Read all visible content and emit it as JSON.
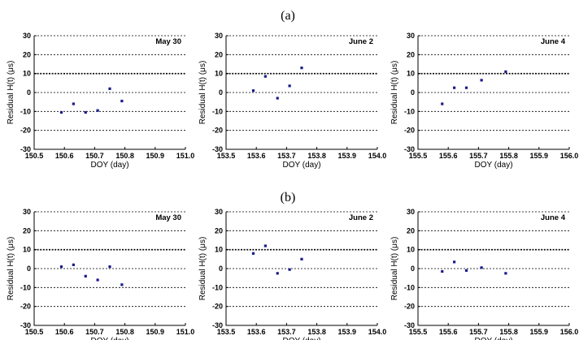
{
  "panel_labels": [
    "(a)",
    "(b)"
  ],
  "chart_data": [
    {
      "type": "scatter",
      "group": "(a)",
      "title": "May 30",
      "xlabel": "DOY (day)",
      "ylabel": "Residual H(t) (μs)",
      "xlim": [
        150.5,
        151.0
      ],
      "ylim": [
        -30,
        30
      ],
      "xticks": [
        "150.5",
        "150.6",
        "150.7",
        "150.8",
        "150.9",
        "151.0"
      ],
      "yticks": [
        "30",
        "20",
        "10",
        "0",
        "-10",
        "-20",
        "-30"
      ],
      "grid": true,
      "ref_line": 10,
      "x": [
        150.59,
        150.63,
        150.67,
        150.71,
        150.75,
        150.79
      ],
      "y": [
        -10.5,
        -6,
        -10.5,
        -9.5,
        2,
        -4.5
      ]
    },
    {
      "type": "scatter",
      "group": "(a)",
      "title": "June 2",
      "xlabel": "DOY (day)",
      "ylabel": "Residual H(t) (μs)",
      "xlim": [
        153.5,
        154.0
      ],
      "ylim": [
        -30,
        30
      ],
      "xticks": [
        "153.5",
        "153.6",
        "153.7",
        "153.8",
        "153.9",
        "154.0"
      ],
      "yticks": [
        "30",
        "20",
        "10",
        "0",
        "-10",
        "-20",
        "-30"
      ],
      "grid": true,
      "ref_line": 10,
      "x": [
        153.59,
        153.63,
        153.67,
        153.71,
        153.75
      ],
      "y": [
        1,
        8.5,
        -3,
        3.5,
        13
      ]
    },
    {
      "type": "scatter",
      "group": "(a)",
      "title": "June 4",
      "xlabel": "DOY (day)",
      "ylabel": "Residual H(t) (μs)",
      "xlim": [
        155.5,
        156.0
      ],
      "ylim": [
        -30,
        30
      ],
      "xticks": [
        "155.5",
        "155.6",
        "155.7",
        "155.8",
        "155.9",
        "156.0"
      ],
      "yticks": [
        "30",
        "20",
        "10",
        "0",
        "-10",
        "-20",
        "-30"
      ],
      "grid": true,
      "ref_line": 10,
      "x": [
        155.58,
        155.62,
        155.66,
        155.71,
        155.79
      ],
      "y": [
        -6,
        2.5,
        2.5,
        6.5,
        11
      ]
    },
    {
      "type": "scatter",
      "group": "(b)",
      "title": "May 30",
      "xlabel": "DOY (day)",
      "ylabel": "Residual H(t) (μs)",
      "xlim": [
        150.5,
        151.0
      ],
      "ylim": [
        -30,
        30
      ],
      "xticks": [
        "150.5",
        "150.6",
        "150.7",
        "150.8",
        "150.9",
        "151.0"
      ],
      "yticks": [
        "30",
        "20",
        "10",
        "0",
        "-10",
        "-20",
        "-30"
      ],
      "grid": true,
      "ref_line": 10,
      "x": [
        150.59,
        150.63,
        150.67,
        150.71,
        150.75,
        150.79
      ],
      "y": [
        1,
        2,
        -4,
        -6,
        1,
        -8.5
      ]
    },
    {
      "type": "scatter",
      "group": "(b)",
      "title": "June 2",
      "xlabel": "DOY (day)",
      "ylabel": "Residual H(t) (μs)",
      "xlim": [
        153.5,
        154.0
      ],
      "ylim": [
        -30,
        30
      ],
      "xticks": [
        "153.5",
        "153.6",
        "153.7",
        "153.8",
        "153.9",
        "154.0"
      ],
      "yticks": [
        "30",
        "20",
        "10",
        "0",
        "-10",
        "-20",
        "-30"
      ],
      "grid": true,
      "ref_line": 10,
      "x": [
        153.59,
        153.63,
        153.67,
        153.71,
        153.75
      ],
      "y": [
        8,
        12,
        -2.5,
        -0.5,
        5
      ]
    },
    {
      "type": "scatter",
      "group": "(b)",
      "title": "June 4",
      "xlabel": "DOY (day)",
      "ylabel": "Residual H(t) (μs)",
      "xlim": [
        155.5,
        156.0
      ],
      "ylim": [
        -30,
        30
      ],
      "xticks": [
        "155.5",
        "155.6",
        "155.7",
        "155.8",
        "155.9",
        "156.0"
      ],
      "yticks": [
        "30",
        "20",
        "10",
        "0",
        "-10",
        "-20",
        "-30"
      ],
      "grid": true,
      "ref_line": 10,
      "x": [
        155.58,
        155.62,
        155.66,
        155.71,
        155.79
      ],
      "y": [
        -1.5,
        3.5,
        -1,
        0.5,
        -2.5
      ]
    }
  ]
}
